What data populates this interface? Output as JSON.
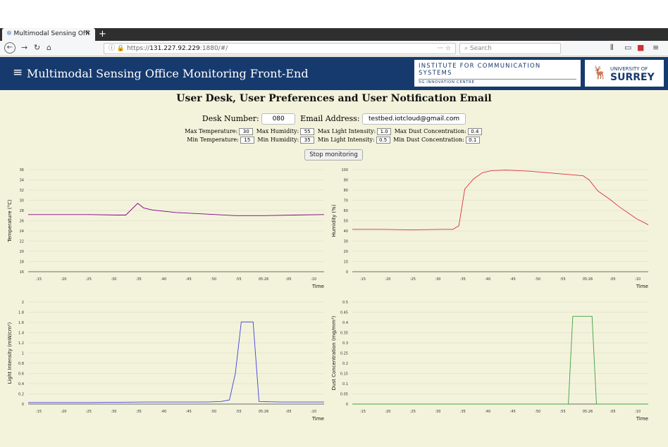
{
  "browser": {
    "tab_title": "Multimodal Sensing Offi",
    "url_prefix": "https://",
    "url_host": "131.227.92.229",
    "url_rest": ":1880/#/",
    "search_placeholder": "Search"
  },
  "header": {
    "title": "Multimodal Sensing Office Monitoring Front-End",
    "ics_line1": "INSTITUTE FOR COMMUNICATION SYSTEMS",
    "ics_line2": "5G INNOVATION CENTRE",
    "uni_line1": "UNIVERSITY OF",
    "uni_line2": "SURREY"
  },
  "page": {
    "heading": "User Desk, User Preferences and User Notification Email",
    "desk_label": "Desk Number:",
    "desk_value": "080",
    "email_label": "Email Address:",
    "email_value": "testbed.iotcloud@gmail.com",
    "stop_button": "Stop monitoring"
  },
  "prefs": {
    "max_temp_label": "Max Temperature:",
    "max_temp": "30",
    "max_hum_label": "Max Humidity:",
    "max_hum": "55",
    "max_light_label": "Max Light Intensity:",
    "max_light": "1.0",
    "max_dust_label": "Max Dust Concentration:",
    "max_dust": "0.4",
    "min_temp_label": "Min Temperature:",
    "min_temp": "15",
    "min_hum_label": "Min Humidity:",
    "min_hum": "35",
    "min_light_label": "Min Light Intensity:",
    "min_light": "0.5",
    "min_dust_label": "Min Dust Concentration:",
    "min_dust": "0.1"
  },
  "chart_data": [
    {
      "type": "line",
      "ylabel": "Temperature (°C)",
      "xlabel": "Time",
      "color": "#800080",
      "ylim": [
        16,
        36
      ],
      "yticks": [
        16,
        18,
        20,
        22,
        24,
        26,
        28,
        30,
        32,
        34,
        36
      ],
      "xticks": [
        ":15",
        ":20",
        ":25",
        ":30",
        ":35",
        ":40",
        ":45",
        ":50",
        ":55",
        "05:26",
        ":05",
        ":10"
      ],
      "values": [
        [
          0,
          27.2
        ],
        [
          0.1,
          27.2
        ],
        [
          0.2,
          27.2
        ],
        [
          0.3,
          27.1
        ],
        [
          0.33,
          27.1
        ],
        [
          0.37,
          29.4
        ],
        [
          0.39,
          28.5
        ],
        [
          0.42,
          28.1
        ],
        [
          0.45,
          27.9
        ],
        [
          0.5,
          27.6
        ],
        [
          0.6,
          27.3
        ],
        [
          0.7,
          27
        ],
        [
          0.8,
          27
        ],
        [
          0.9,
          27.1
        ],
        [
          1,
          27.2
        ]
      ]
    },
    {
      "type": "line",
      "ylabel": "Humidity (%)",
      "xlabel": "Time",
      "color": "#e0303a",
      "ylim": [
        0,
        100
      ],
      "yticks": [
        0,
        10,
        20,
        30,
        40,
        50,
        60,
        70,
        80,
        90,
        100
      ],
      "xticks": [
        ":15",
        ":20",
        ":25",
        ":30",
        ":35",
        ":40",
        ":45",
        ":50",
        ":55",
        "05:26",
        ":05",
        ":10"
      ],
      "values": [
        [
          0,
          41.5
        ],
        [
          0.1,
          41.5
        ],
        [
          0.2,
          41
        ],
        [
          0.3,
          41.5
        ],
        [
          0.34,
          41.5
        ],
        [
          0.36,
          45
        ],
        [
          0.38,
          81
        ],
        [
          0.41,
          91
        ],
        [
          0.44,
          97
        ],
        [
          0.47,
          99
        ],
        [
          0.52,
          99.5
        ],
        [
          0.6,
          98.5
        ],
        [
          0.7,
          96
        ],
        [
          0.78,
          94
        ],
        [
          0.8,
          90
        ],
        [
          0.83,
          79
        ],
        [
          0.87,
          71
        ],
        [
          0.9,
          64
        ],
        [
          0.93,
          58
        ],
        [
          0.96,
          52
        ],
        [
          1,
          46
        ]
      ]
    },
    {
      "type": "line",
      "ylabel": "Light Intensity (mW/cm²)",
      "xlabel": "Time",
      "color": "#4040dd",
      "ylim": [
        0,
        2.0
      ],
      "yticks": [
        0,
        0.2,
        0.4,
        0.6,
        0.8,
        1.0,
        1.2,
        1.4,
        1.6,
        1.8,
        2.0
      ],
      "xticks": [
        ":15",
        ":20",
        ":25",
        ":30",
        ":35",
        ":40",
        ":45",
        ":50",
        ":55",
        "05:26",
        ":05",
        ":10"
      ],
      "values": [
        [
          0,
          0.03
        ],
        [
          0.2,
          0.03
        ],
        [
          0.4,
          0.04
        ],
        [
          0.6,
          0.04
        ],
        [
          0.65,
          0.05
        ],
        [
          0.68,
          0.08
        ],
        [
          0.7,
          0.6
        ],
        [
          0.72,
          1.61
        ],
        [
          0.76,
          1.61
        ],
        [
          0.78,
          0.05
        ],
        [
          0.85,
          0.04
        ],
        [
          1,
          0.04
        ]
      ]
    },
    {
      "type": "line",
      "ylabel": "Dust Concentration (mg/mm³)",
      "xlabel": "Time",
      "color": "#40a040",
      "ylim": [
        0,
        0.5
      ],
      "yticks": [
        0,
        0.05,
        0.1,
        0.15,
        0.2,
        0.25,
        0.3,
        0.35,
        0.4,
        0.45,
        0.5
      ],
      "xticks": [
        ":15",
        ":20",
        ":25",
        ":30",
        ":35",
        ":40",
        ":45",
        ":50",
        ":55",
        "05:26",
        ":05",
        ":10"
      ],
      "values": [
        [
          0,
          0.0
        ],
        [
          0.5,
          0.0
        ],
        [
          0.73,
          0.0
        ],
        [
          0.745,
          0.43
        ],
        [
          0.81,
          0.43
        ],
        [
          0.825,
          0.0
        ],
        [
          1,
          0.0
        ]
      ]
    }
  ]
}
